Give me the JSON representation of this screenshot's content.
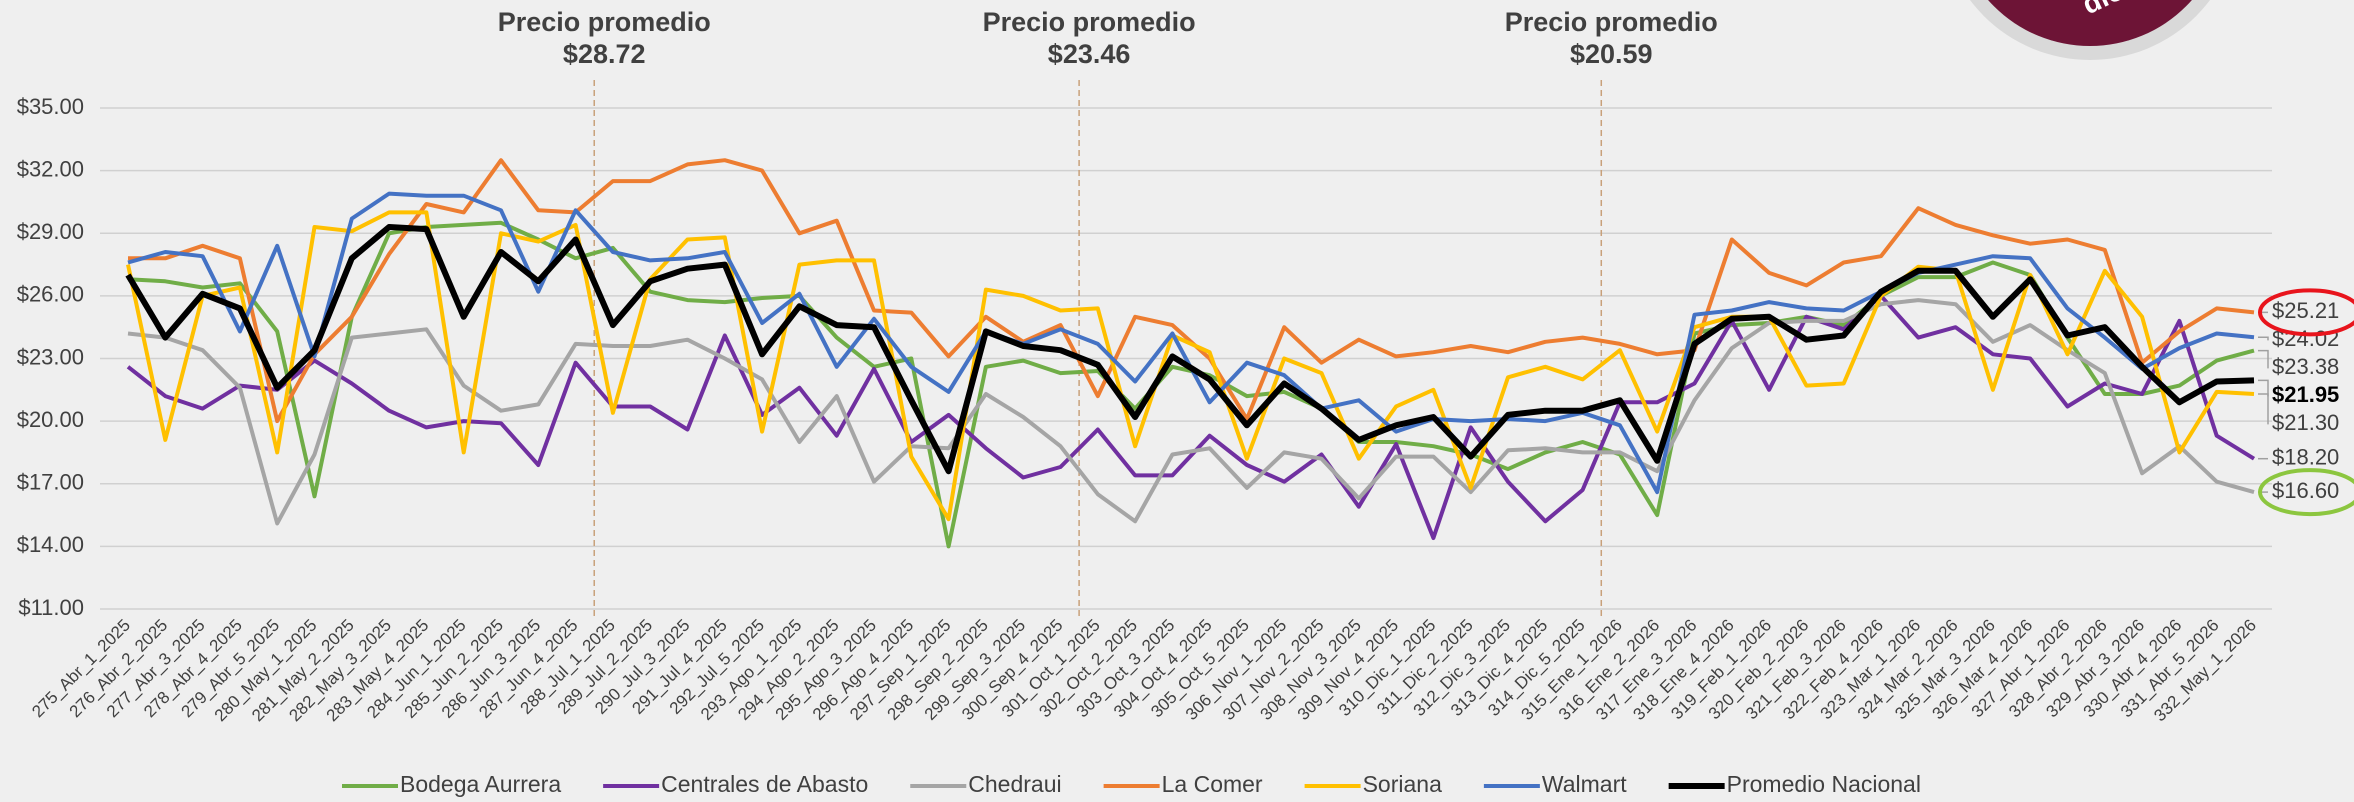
{
  "chart_data": {
    "type": "line",
    "badge": "dio",
    "annotations": [
      {
        "label": "Precio promedio",
        "value_label": "$28.72"
      },
      {
        "label": "Precio promedio",
        "value_label": "$23.46"
      },
      {
        "label": "Precio promedio",
        "value_label": "$20.59"
      }
    ],
    "categories": [
      "275_Abr_1_2025",
      "276_Abr_2_2025",
      "277_Abr_3_2025",
      "278_Abr_4_2025",
      "279_Abr_5_2025",
      "280_May_1_2025",
      "281_May_2_2025",
      "282_May_3_2025",
      "283_May_4_2025",
      "284_Jun_1_2025",
      "285_Jun_2_2025",
      "286_Jun_3_2025",
      "287_Jun_4_2025",
      "288_Jul_1_2025",
      "289_Jul_2_2025",
      "290_Jul_3_2025",
      "291_Jul_4_2025",
      "292_Jul_5_2025",
      "293_Ago_1_2025",
      "294_Ago_2_2025",
      "295_Ago_3_2025",
      "296_Ago_4_2025",
      "297_Sep_1_2025",
      "298_Sep_2_2025",
      "299_Sep_3_2025",
      "300_Sep_4_2025",
      "301_Oct_1_2025",
      "302_Oct_2_2025",
      "303_Oct_3_2025",
      "304_Oct_4_2025",
      "305_Oct_5_2025",
      "306_Nov_1_2025",
      "307_Nov_2_2025",
      "308_Nov_3_2025",
      "309_Nov_4_2025",
      "310_Dic_1_2025",
      "311_Dic_2_2025",
      "312_Dic_3_2025",
      "313_Dic_4_2025",
      "314_Dic_5_2025",
      "315_Ene_1_2026",
      "316_Ene_2_2026",
      "317_Ene_3_2026",
      "318_Ene_4_2026",
      "319_Feb_1_2026",
      "320_Feb_2_2026",
      "321_Feb_3_2026",
      "322_Feb_4_2026",
      "323_Mar_1_2026",
      "324_Mar_2_2026",
      "325_Mar_3_2026",
      "326_Mar_4_2026",
      "327_Abr_1_2026",
      "328_Abr_2_2026",
      "329_Abr_3_2026",
      "330_Abr_4_2026",
      "331_Abr_5_2026",
      "332_May_1_2026"
    ],
    "ylim": [
      11,
      35
    ],
    "yticks": [
      {
        "value": 11,
        "label": "$11.00"
      },
      {
        "value": 14,
        "label": "$14.00"
      },
      {
        "value": 17,
        "label": "$17.00"
      },
      {
        "value": 20,
        "label": "$20.00"
      },
      {
        "value": 23,
        "label": "$23.00"
      },
      {
        "value": 26,
        "label": "$26.00"
      },
      {
        "value": 29,
        "label": "$29.00"
      },
      {
        "value": 32,
        "label": "$32.00"
      },
      {
        "value": 35,
        "label": "$35.00"
      }
    ],
    "grid": true,
    "legend": "bottom",
    "series": [
      {
        "name": "Bodega Aurrera",
        "color": "#70ad47",
        "width": 4,
        "values": [
          26.8,
          26.7,
          26.4,
          26.6,
          24.3,
          16.4,
          25.0,
          29.0,
          29.3,
          29.4,
          29.5,
          28.7,
          27.8,
          28.3,
          26.2,
          25.8,
          25.7,
          25.9,
          26.0,
          24.0,
          22.6,
          23.0,
          14.0,
          22.6,
          22.9,
          22.3,
          22.4,
          20.6,
          22.6,
          22.2,
          21.2,
          21.4,
          20.6,
          19.0,
          19.0,
          18.8,
          18.4,
          17.7,
          18.5,
          19.0,
          18.4,
          15.5,
          24.2,
          24.6,
          24.7,
          25.0,
          24.6,
          26.0,
          26.9,
          26.9,
          27.6,
          27.0,
          24.0,
          21.3,
          21.3,
          21.7,
          22.9,
          23.38
        ],
        "value_labels": [
          null,
          null,
          null,
          null,
          null,
          null,
          null,
          null,
          null,
          null,
          null,
          null,
          null,
          null,
          null,
          null,
          null,
          null,
          null,
          null,
          null,
          null,
          null,
          null,
          null,
          null,
          null,
          null,
          null,
          null,
          null,
          null,
          null,
          null,
          null,
          null,
          null,
          null,
          null,
          null,
          null,
          null,
          null,
          null,
          null,
          null,
          null,
          null,
          null,
          null,
          null,
          null,
          null,
          null,
          null,
          null,
          null,
          "$23.38"
        ]
      },
      {
        "name": "Centrales de Abasto",
        "color": "#7030a0",
        "width": 4,
        "values": [
          22.6,
          21.2,
          20.6,
          21.7,
          21.5,
          22.9,
          21.8,
          20.5,
          19.7,
          20.0,
          19.9,
          17.9,
          22.8,
          20.7,
          20.7,
          19.6,
          24.1,
          20.3,
          21.6,
          19.3,
          22.5,
          19.0,
          20.3,
          18.7,
          17.3,
          17.8,
          19.6,
          17.4,
          17.4,
          19.3,
          17.9,
          17.1,
          18.4,
          15.9,
          18.9,
          14.4,
          19.7,
          17.1,
          15.2,
          16.7,
          20.9,
          20.9,
          21.8,
          24.8,
          21.5,
          25.0,
          24.4,
          26.0,
          24.0,
          24.5,
          23.2,
          23.0,
          20.7,
          21.8,
          21.3,
          24.8,
          19.3,
          18.2
        ],
        "value_labels": [
          null,
          null,
          null,
          null,
          null,
          null,
          null,
          null,
          null,
          null,
          null,
          null,
          null,
          null,
          null,
          null,
          null,
          null,
          null,
          null,
          null,
          null,
          null,
          null,
          null,
          null,
          null,
          null,
          null,
          null,
          null,
          null,
          null,
          null,
          null,
          null,
          null,
          null,
          null,
          null,
          null,
          null,
          null,
          null,
          null,
          null,
          null,
          null,
          null,
          null,
          null,
          null,
          null,
          null,
          null,
          null,
          null,
          "$18.20"
        ]
      },
      {
        "name": "Chedraui",
        "color": "#a5a5a5",
        "width": 4,
        "values": [
          24.2,
          24.0,
          23.4,
          21.6,
          15.1,
          18.4,
          24.0,
          24.2,
          24.4,
          21.7,
          20.5,
          20.8,
          23.7,
          23.6,
          23.6,
          23.9,
          23.0,
          22.0,
          19.0,
          21.2,
          17.1,
          18.8,
          18.7,
          21.3,
          20.2,
          18.8,
          16.5,
          15.2,
          18.4,
          18.7,
          16.8,
          18.5,
          18.2,
          16.3,
          18.3,
          18.3,
          16.6,
          18.6,
          18.7,
          18.5,
          18.5,
          17.6,
          21.0,
          23.5,
          24.7,
          24.8,
          24.8,
          25.6,
          25.8,
          25.6,
          23.8,
          24.6,
          23.4,
          22.3,
          17.5,
          18.8,
          17.1,
          16.6
        ],
        "value_labels": [
          null,
          null,
          null,
          null,
          null,
          null,
          null,
          null,
          null,
          null,
          null,
          null,
          null,
          null,
          null,
          null,
          null,
          null,
          null,
          null,
          null,
          null,
          null,
          null,
          null,
          null,
          null,
          null,
          null,
          null,
          null,
          null,
          null,
          null,
          null,
          null,
          null,
          null,
          null,
          null,
          null,
          null,
          null,
          null,
          null,
          null,
          null,
          null,
          null,
          null,
          null,
          null,
          null,
          null,
          null,
          null,
          null,
          "$16.60"
        ]
      },
      {
        "name": "La Comer",
        "color": "#ed7d31",
        "width": 4,
        "values": [
          27.8,
          27.8,
          28.4,
          27.8,
          20.0,
          23.2,
          25.0,
          28.0,
          30.4,
          30.0,
          32.5,
          30.1,
          30.0,
          31.5,
          31.5,
          32.3,
          32.5,
          32.0,
          29.0,
          29.6,
          25.3,
          25.2,
          23.1,
          25.0,
          23.8,
          24.6,
          21.2,
          25.0,
          24.6,
          23.0,
          20.1,
          24.5,
          22.8,
          23.9,
          23.1,
          23.3,
          23.6,
          23.3,
          23.8,
          24.0,
          23.7,
          23.2,
          23.4,
          28.7,
          27.1,
          26.5,
          27.6,
          27.9,
          30.2,
          29.4,
          28.9,
          28.5,
          28.7,
          28.2,
          22.8,
          24.3,
          25.4,
          25.21
        ],
        "value_labels": [
          null,
          null,
          null,
          null,
          null,
          null,
          null,
          null,
          null,
          null,
          null,
          null,
          null,
          null,
          null,
          null,
          null,
          null,
          null,
          null,
          null,
          null,
          null,
          null,
          null,
          null,
          null,
          null,
          null,
          null,
          null,
          null,
          null,
          null,
          null,
          null,
          null,
          null,
          null,
          null,
          null,
          null,
          null,
          null,
          null,
          null,
          null,
          null,
          null,
          null,
          null,
          null,
          null,
          null,
          null,
          null,
          null,
          "$25.21"
        ]
      },
      {
        "name": "Soriana",
        "color": "#ffc000",
        "width": 4,
        "values": [
          27.5,
          19.1,
          26.0,
          26.4,
          18.5,
          29.3,
          29.1,
          30.0,
          30.0,
          18.5,
          29.0,
          28.6,
          29.4,
          20.4,
          26.8,
          28.7,
          28.8,
          19.5,
          27.5,
          27.7,
          27.7,
          18.3,
          15.3,
          26.3,
          26.0,
          25.3,
          25.4,
          18.8,
          24.1,
          23.3,
          18.2,
          23.0,
          22.3,
          18.2,
          20.7,
          21.5,
          16.8,
          22.1,
          22.6,
          22.0,
          23.4,
          19.5,
          24.5,
          25.0,
          25.0,
          21.7,
          21.8,
          26.0,
          27.4,
          27.2,
          21.5,
          27.0,
          23.2,
          27.2,
          25.0,
          18.5,
          21.4,
          21.3
        ],
        "value_labels": [
          null,
          null,
          null,
          null,
          null,
          null,
          null,
          null,
          null,
          null,
          null,
          null,
          null,
          null,
          null,
          null,
          null,
          null,
          null,
          null,
          null,
          null,
          null,
          null,
          null,
          null,
          null,
          null,
          null,
          null,
          null,
          null,
          null,
          null,
          null,
          null,
          null,
          null,
          null,
          null,
          null,
          null,
          null,
          null,
          null,
          null,
          null,
          null,
          null,
          null,
          null,
          null,
          null,
          null,
          null,
          null,
          null,
          "$21.30"
        ]
      },
      {
        "name": "Walmart",
        "color": "#4472c4",
        "width": 4,
        "values": [
          27.6,
          28.1,
          27.9,
          24.3,
          28.4,
          23.1,
          29.7,
          30.9,
          30.8,
          30.8,
          30.1,
          26.2,
          30.1,
          28.1,
          27.7,
          27.8,
          28.1,
          24.7,
          26.1,
          22.6,
          24.9,
          22.6,
          21.4,
          24.3,
          23.7,
          24.4,
          23.7,
          21.9,
          24.2,
          20.9,
          22.8,
          22.2,
          20.6,
          21.0,
          19.5,
          20.1,
          20.0,
          20.1,
          20.0,
          20.4,
          19.8,
          16.6,
          25.1,
          25.3,
          25.7,
          25.4,
          25.3,
          26.2,
          27.1,
          27.5,
          27.9,
          27.8,
          25.4,
          24.0,
          22.5,
          23.5,
          24.2,
          24.02
        ],
        "value_labels": [
          null,
          null,
          null,
          null,
          null,
          null,
          null,
          null,
          null,
          null,
          null,
          null,
          null,
          null,
          null,
          null,
          null,
          null,
          null,
          null,
          null,
          null,
          null,
          null,
          null,
          null,
          null,
          null,
          null,
          null,
          null,
          null,
          null,
          null,
          null,
          null,
          null,
          null,
          null,
          null,
          null,
          null,
          null,
          null,
          null,
          null,
          null,
          null,
          null,
          null,
          null,
          null,
          null,
          null,
          null,
          null,
          null,
          "$24.02"
        ]
      },
      {
        "name": "Promedio Nacional",
        "color": "#000000",
        "width": 6,
        "values": [
          27.0,
          24.0,
          26.1,
          25.4,
          21.6,
          23.4,
          27.8,
          29.3,
          29.2,
          25.0,
          28.1,
          26.7,
          28.7,
          24.6,
          26.7,
          27.3,
          27.5,
          23.2,
          25.5,
          24.6,
          24.5,
          21.0,
          17.6,
          24.3,
          23.6,
          23.4,
          22.7,
          20.2,
          23.1,
          22.0,
          19.8,
          21.8,
          20.6,
          19.1,
          19.8,
          20.2,
          18.3,
          20.3,
          20.5,
          20.5,
          21.0,
          18.1,
          23.7,
          24.9,
          25.0,
          23.9,
          24.1,
          26.2,
          27.2,
          27.2,
          25.0,
          26.8,
          24.1,
          24.5,
          22.6,
          20.9,
          21.9,
          21.95
        ],
        "value_labels": [
          null,
          null,
          null,
          null,
          null,
          null,
          null,
          null,
          null,
          null,
          null,
          null,
          null,
          null,
          null,
          null,
          null,
          null,
          null,
          null,
          null,
          null,
          null,
          null,
          null,
          null,
          null,
          null,
          null,
          null,
          null,
          null,
          null,
          null,
          null,
          null,
          null,
          null,
          null,
          null,
          null,
          null,
          null,
          null,
          null,
          null,
          null,
          null,
          null,
          null,
          null,
          null,
          null,
          null,
          null,
          null,
          null,
          "$21.95"
        ]
      }
    ]
  }
}
